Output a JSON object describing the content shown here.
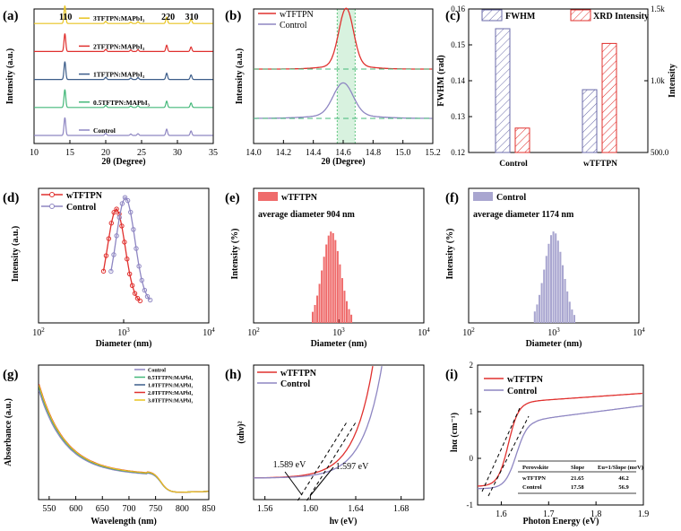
{
  "figure": {
    "panel_labels": [
      "(a)",
      "(b)",
      "(c)",
      "(d)",
      "(e)",
      "(f)",
      "(g)",
      "(h)",
      "(i)"
    ]
  },
  "chart_data": [
    {
      "id": "a",
      "type": "line",
      "title": "",
      "xlabel": "2θ (Degree)",
      "ylabel": "Intensity (a.u.)",
      "xlim": [
        10,
        35
      ],
      "xticks": [
        10,
        15,
        20,
        25,
        30,
        35
      ],
      "peak_labels": [
        {
          "x": 14.4,
          "text": "110"
        },
        {
          "x": 28.7,
          "text": "220"
        },
        {
          "x": 32.0,
          "text": "310"
        }
      ],
      "peaks": [
        14.3,
        20.0,
        23.5,
        24.5,
        28.5,
        31.9
      ],
      "peak_heights": [
        1.0,
        0.12,
        0.08,
        0.1,
        0.35,
        0.25
      ],
      "series": [
        {
          "name": "3TFTPN:MAPbI₃",
          "color": "#e8c420",
          "offset": 5.2
        },
        {
          "name": "2TFTPN:MAPbI₃",
          "color": "#e0302e",
          "offset": 3.9
        },
        {
          "name": "1TFTPN:MAPbI₃",
          "color": "#3c5d8a",
          "offset": 2.6
        },
        {
          "name": "0.5TFTPN:MAPbI₃",
          "color": "#44b87a",
          "offset": 1.3
        },
        {
          "name": "Control",
          "color": "#8e86c2",
          "offset": 0
        }
      ]
    },
    {
      "id": "b",
      "type": "line",
      "xlabel": "2θ (Degree)",
      "ylabel": "Intensity (a.u.)",
      "xlim": [
        14.0,
        15.2
      ],
      "xticks": [
        14.0,
        14.2,
        14.4,
        14.6,
        14.8,
        15.0,
        15.2
      ],
      "highlight_range": [
        14.56,
        14.68
      ],
      "series": [
        {
          "name": "wTFTPN",
          "color": "#e0302e",
          "peak": 14.62,
          "fwhm": 0.115,
          "height": 1.0
        },
        {
          "name": "Control",
          "color": "#8e86c2",
          "peak": 14.6,
          "fwhm": 0.155,
          "height": 0.6
        }
      ]
    },
    {
      "id": "c",
      "type": "bar",
      "categories": [
        "Control",
        "wTFTPN"
      ],
      "series": [
        {
          "name": "FWHM",
          "axis": "left",
          "values": [
            0.1545,
            0.1375
          ],
          "color": "#6a6aa8"
        },
        {
          "name": "XRD Intensity",
          "axis": "right",
          "values": [
            670,
            1260
          ],
          "color": "#e0302e"
        }
      ],
      "ylabel": "FWHM (rad)",
      "ylim": [
        0.12,
        0.16
      ],
      "yticks": [
        0.12,
        0.13,
        0.14,
        0.15,
        0.16
      ],
      "ylabel_right": "Intensity",
      "ylim_right": [
        500,
        1500
      ],
      "yticks_right": [
        {
          "v": 500,
          "t": "500.0"
        },
        {
          "v": 1000,
          "t": "1.0k"
        },
        {
          "v": 1500,
          "t": "1.5k"
        }
      ]
    },
    {
      "id": "d",
      "type": "line",
      "xscale": "log",
      "xlabel": "Diameter (nm)",
      "ylabel": "Intensity (a.u.)",
      "xlim": [
        100,
        10000
      ],
      "xtick_labels": [
        {
          "base": "10",
          "exp": "2"
        },
        {
          "base": "10",
          "exp": "3"
        },
        {
          "base": "10",
          "exp": "4"
        }
      ],
      "series": [
        {
          "name": "wTFTPN",
          "color": "#e0302e",
          "center": 820,
          "min": 580,
          "max": 1560,
          "n": 15
        },
        {
          "name": "Control",
          "color": "#8e86c2",
          "center": 1050,
          "min": 710,
          "max": 2050,
          "n": 15
        }
      ]
    },
    {
      "id": "e",
      "type": "bar",
      "xscale": "log",
      "xlabel": "Diameter (nm)",
      "ylabel": "Intensity (%)",
      "legend": "wTFTPN",
      "annotation": "average diameter 904 nm",
      "color": "#ef6b6b",
      "center": 820,
      "min": 480,
      "max": 1450,
      "n": 18,
      "xlim": [
        100,
        10000
      ],
      "xtick_labels": [
        {
          "base": "10",
          "exp": "2"
        },
        {
          "base": "10",
          "exp": "3"
        },
        {
          "base": "10",
          "exp": "4"
        }
      ]
    },
    {
      "id": "f",
      "type": "bar",
      "xscale": "log",
      "xlabel": "Diameter (nm)",
      "ylabel": "Intensity (%)",
      "legend": "Control",
      "annotation": "average diameter 1174 nm",
      "color": "#a9a6d0",
      "center": 1000,
      "min": 580,
      "max": 1800,
      "n": 18,
      "xlim": [
        100,
        10000
      ],
      "xtick_labels": [
        {
          "base": "10",
          "exp": "2"
        },
        {
          "base": "10",
          "exp": "3"
        },
        {
          "base": "10",
          "exp": "4"
        }
      ]
    },
    {
      "id": "g",
      "type": "line",
      "xlabel": "Wavelength (nm)",
      "ylabel": "Absorbance (a.u.)",
      "xlim": [
        530,
        850
      ],
      "xticks": [
        550,
        600,
        650,
        700,
        750,
        800,
        850
      ],
      "series": [
        {
          "name": "Control",
          "color": "#8e86c2",
          "scale": 0.94
        },
        {
          "name": "0.5TFTPN:MAPbI₃",
          "color": "#44b87a",
          "scale": 0.97
        },
        {
          "name": "1.0TFTPN:MAPbI₃",
          "color": "#3c5d8a",
          "scale": 0.985
        },
        {
          "name": "2.0TFTPN:MAPbI₃",
          "color": "#e0302e",
          "scale": 1.0
        },
        {
          "name": "3.0TFTPN:MAPbI₃",
          "color": "#e8c420",
          "scale": 0.99
        }
      ]
    },
    {
      "id": "h",
      "type": "line",
      "xlabel": "hν (eV)",
      "ylabel": "(αhν)²",
      "xlim": [
        1.55,
        1.7
      ],
      "xticks": [
        1.56,
        1.6,
        1.64,
        1.68
      ],
      "series": [
        {
          "name": "wTFTPN",
          "color": "#e0302e",
          "onset": 1.589
        },
        {
          "name": "Control",
          "color": "#8e86c2",
          "onset": 1.597
        }
      ],
      "annotations": [
        "1.589 eV",
        "1.597 eV"
      ]
    },
    {
      "id": "i",
      "type": "line",
      "xlabel": "Photon Energy (eV)",
      "ylabel": "lnα (cm⁻¹)",
      "xlim": [
        1.55,
        1.9
      ],
      "xticks": [
        1.6,
        1.7,
        1.8,
        1.9
      ],
      "ylim": [
        -1,
        2
      ],
      "yticks": [
        -1,
        0,
        1,
        2
      ],
      "series": [
        {
          "name": "wTFTPN",
          "color": "#e0302e"
        },
        {
          "name": "Control",
          "color": "#8e86c2"
        }
      ],
      "table": {
        "headers": [
          "Perovskite",
          "Slope",
          "Eu=1/Slope (meV)"
        ],
        "rows": [
          [
            "wTFTPN",
            "21.65",
            "46.2"
          ],
          [
            "Control",
            "17.58",
            "56.9"
          ]
        ]
      }
    }
  ]
}
